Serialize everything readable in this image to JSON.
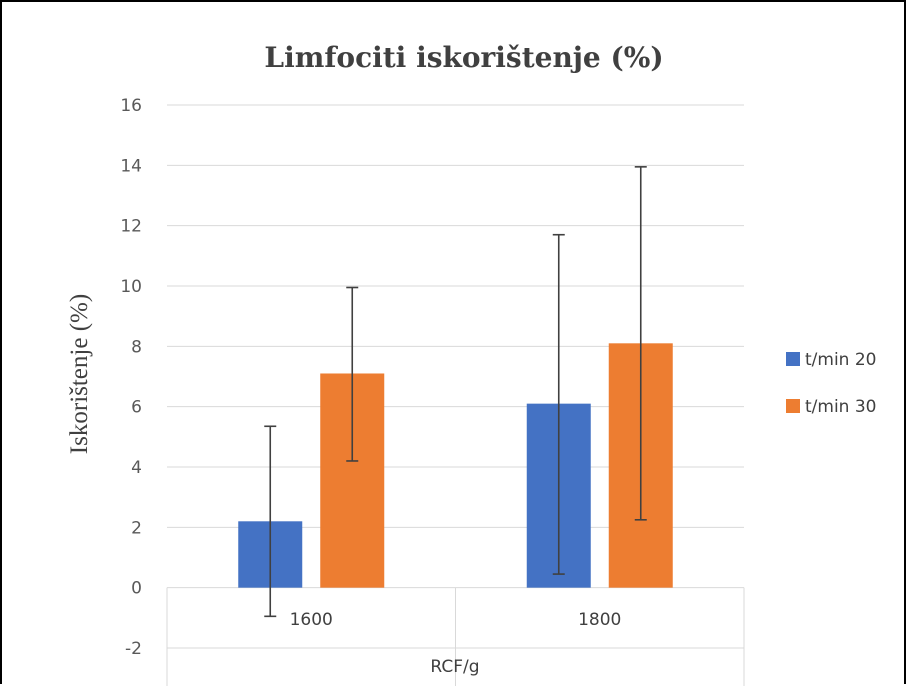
{
  "chart_data": {
    "type": "bar",
    "title": "Limfociti iskorištenje (%)",
    "xlabel": "RCF/g",
    "ylabel": "Iskorištenje (%)",
    "categories": [
      "1600",
      "1800"
    ],
    "ylim": [
      -2,
      16
    ],
    "yticks": [
      -2,
      0,
      2,
      4,
      6,
      8,
      10,
      12,
      14,
      16
    ],
    "grid": true,
    "legend_position": "right",
    "series": [
      {
        "name": "t/min 20",
        "color": "#4472C4",
        "values": [
          2.2,
          6.1
        ],
        "error_low": [
          -0.95,
          0.45
        ],
        "error_high": [
          5.35,
          11.7
        ]
      },
      {
        "name": "t/min 30",
        "color": "#ED7D31",
        "values": [
          7.1,
          8.1
        ],
        "error_low": [
          4.2,
          2.25
        ],
        "error_high": [
          9.95,
          13.95
        ]
      }
    ]
  }
}
